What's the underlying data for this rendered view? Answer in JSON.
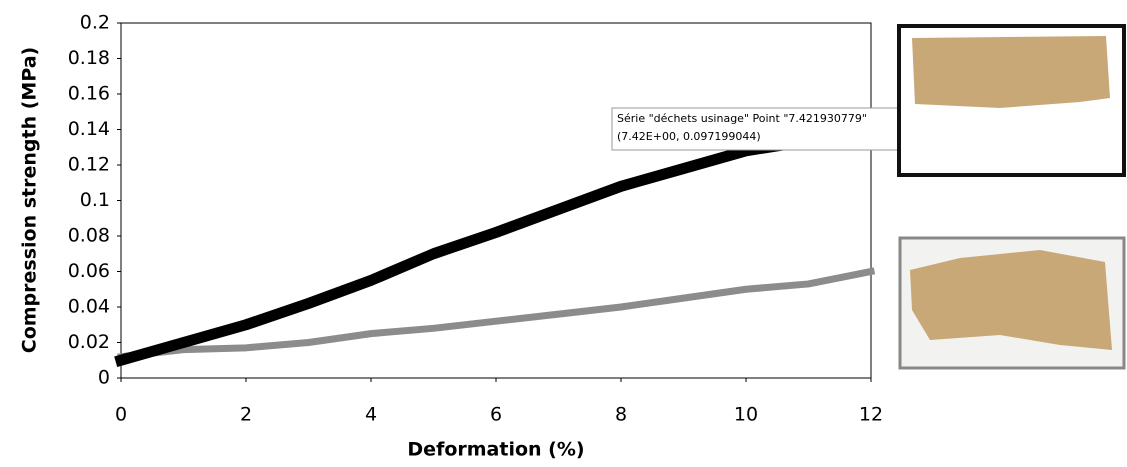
{
  "chart_data": {
    "type": "line",
    "xlabel": "Deformation (%)",
    "ylabel": "Compression strength (MPa)",
    "xlim": [
      0,
      12
    ],
    "xticks": [
      0,
      2,
      4,
      6,
      8,
      10,
      12
    ],
    "ylim": [
      0,
      0.2
    ],
    "yticks": [
      0,
      0.02,
      0.04,
      0.06,
      0.08,
      0.1,
      0.12,
      0.14,
      0.16,
      0.18,
      0.2
    ],
    "series": [
      {
        "color": "#000000",
        "x": [
          0,
          1,
          2,
          3,
          4,
          5,
          6,
          7,
          8,
          9,
          10,
          10.9
        ],
        "values": [
          0.01,
          0.02,
          0.03,
          0.042,
          0.055,
          0.07,
          0.082,
          0.095,
          0.108,
          0.118,
          0.128,
          0.133
        ]
      },
      {
        "color": "#8c8c8c",
        "x": [
          0,
          1,
          2,
          3,
          4,
          5,
          6,
          7,
          8,
          9,
          10,
          11,
          12
        ],
        "values": [
          0.012,
          0.016,
          0.017,
          0.02,
          0.025,
          0.028,
          0.032,
          0.036,
          0.04,
          0.045,
          0.05,
          0.053,
          0.06
        ]
      }
    ],
    "annotations": [
      "Série \"déchets usinage\" Point \"7.421930779\"",
      "(7.42E+00, 0.097199044)"
    ]
  }
}
